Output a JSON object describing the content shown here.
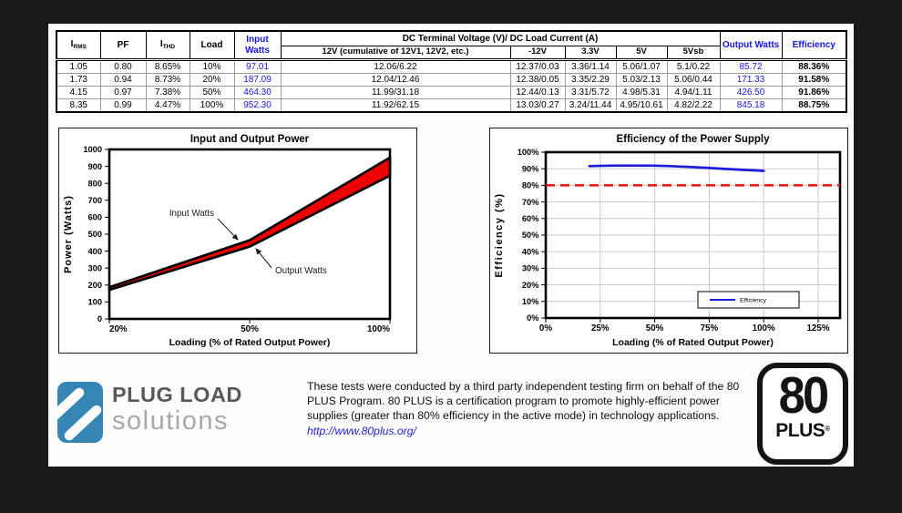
{
  "table": {
    "header": {
      "irms_main": "I",
      "irms_sub": "RMS",
      "pf": "PF",
      "ithd_main": "I",
      "ithd_sub": "THD",
      "load": "Load",
      "input_watts": "Input Watts",
      "group": "DC Terminal Voltage (V)/ DC Load Current (A)",
      "sub": [
        "12V (cumulative of 12V1, 12V2, etc.)",
        "-12V",
        "3.3V",
        "5V",
        "5Vsb"
      ],
      "output_watts": "Output Watts",
      "efficiency": "Efficiency"
    },
    "rows": [
      [
        "1.05",
        "0.80",
        "8.65%",
        "10%",
        "97.01",
        "12.06/6.22",
        "12.37/0.03",
        "3.36/1.14",
        "5.06/1.07",
        "5.1/0.22",
        "85.72",
        "88.36%"
      ],
      [
        "1.73",
        "0.94",
        "8.73%",
        "20%",
        "187.09",
        "12.04/12.46",
        "12.38/0.05",
        "3.35/2.29",
        "5.03/2.13",
        "5.06/0.44",
        "171.33",
        "91.58%"
      ],
      [
        "4.15",
        "0.97",
        "7.38%",
        "50%",
        "464.30",
        "11.99/31.18",
        "12.44/0.13",
        "3.31/5.72",
        "4.98/5.31",
        "4.94/1.11",
        "426.50",
        "91.86%"
      ],
      [
        "8.35",
        "0.99",
        "4.47%",
        "100%",
        "952.30",
        "11.92/62.15",
        "13.03/0.27",
        "3.24/11.44",
        "4.95/10.61",
        "4.82/2.22",
        "845.18",
        "88.75%"
      ]
    ],
    "accent_color": "#1414e8"
  },
  "chart_data": [
    {
      "type": "area",
      "title": "Input and Output Power",
      "xlabel": "Loading (% of Rated Output Power)",
      "ylabel": "Power (Watts)",
      "categories": [
        "20%",
        "50%",
        "100%"
      ],
      "series": [
        {
          "name": "Input Watts",
          "values": [
            187.09,
            464.3,
            952.3
          ]
        },
        {
          "name": "Output Watts",
          "values": [
            171.33,
            426.5,
            845.18
          ]
        }
      ],
      "ylim": [
        0,
        1000
      ],
      "ytick_step": 100,
      "grid": false,
      "band_color": "#ee0000",
      "outline_color": "#000000"
    },
    {
      "type": "line",
      "title": "Efficiency of the Power Supply",
      "xlabel": "Loading (% of Rated Output Power)",
      "ylabel": "Efficiency (%)",
      "x": [
        20,
        50,
        100
      ],
      "series": [
        {
          "name": "Efficiency",
          "values": [
            91.58,
            91.86,
            88.75
          ]
        }
      ],
      "xticks": [
        "0%",
        "25%",
        "50%",
        "75%",
        "100%",
        "125%"
      ],
      "xlim": [
        0,
        125
      ],
      "ylim": [
        0,
        100
      ],
      "ytick_step": 10,
      "ytick_suffix": "%",
      "grid": true,
      "grid_color": "#c9c9c9",
      "line_color": "#1c1cdd",
      "reference_line": {
        "value": 80,
        "style": "dashed",
        "color": "#ee1111"
      },
      "legend": {
        "label": "Efficiency",
        "position": "lower-right"
      }
    }
  ],
  "footer": {
    "brand_title": "PLUG LOAD",
    "brand_subtitle": "solutions",
    "brand_color": "#3585b5",
    "paragraph": "These tests were conducted by a third party independent testing firm on behalf of the 80 PLUS Program. 80 PLUS is a certification program to promote highly-efficient power supplies (greater than 80% efficiency in the active mode) in technology applications.",
    "link": "http://www.80plus.org/",
    "badge_number": "80",
    "badge_word": "PLUS",
    "badge_reg": "®"
  }
}
